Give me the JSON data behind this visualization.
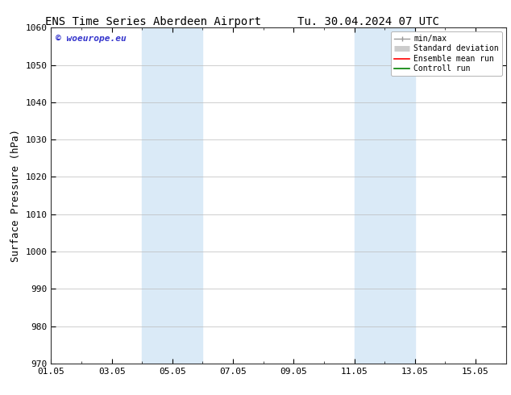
{
  "title_left": "ENS Time Series Aberdeen Airport",
  "title_right": "Tu. 30.04.2024 07 UTC",
  "ylabel": "Surface Pressure (hPa)",
  "ylim": [
    970,
    1060
  ],
  "yticks": [
    970,
    980,
    990,
    1000,
    1010,
    1020,
    1030,
    1040,
    1050,
    1060
  ],
  "xlim": [
    0,
    15
  ],
  "xtick_labels": [
    "01.05",
    "03.05",
    "05.05",
    "07.05",
    "09.05",
    "11.05",
    "13.05",
    "15.05"
  ],
  "xtick_positions_days": [
    0,
    2,
    4,
    6,
    8,
    10,
    12,
    14
  ],
  "shaded_bands": [
    {
      "start_day": 3.0,
      "end_day": 5.0
    },
    {
      "start_day": 10.0,
      "end_day": 12.0
    }
  ],
  "shade_color": "#daeaf7",
  "watermark_text": "© woeurope.eu",
  "watermark_color": "#3333cc",
  "legend_items": [
    {
      "label": "min/max",
      "color": "#999999",
      "linestyle": "-",
      "linewidth": 1.0
    },
    {
      "label": "Standard deviation",
      "color": "#cccccc",
      "linestyle": "-",
      "linewidth": 5
    },
    {
      "label": "Ensemble mean run",
      "color": "#ff0000",
      "linestyle": "-",
      "linewidth": 1.2
    },
    {
      "label": "Controll run",
      "color": "#008000",
      "linestyle": "-",
      "linewidth": 1.2
    }
  ],
  "background_color": "#ffffff",
  "grid_color": "#bbbbbb",
  "title_fontsize": 10,
  "tick_fontsize": 8,
  "ylabel_fontsize": 9,
  "legend_fontsize": 7,
  "watermark_fontsize": 8
}
